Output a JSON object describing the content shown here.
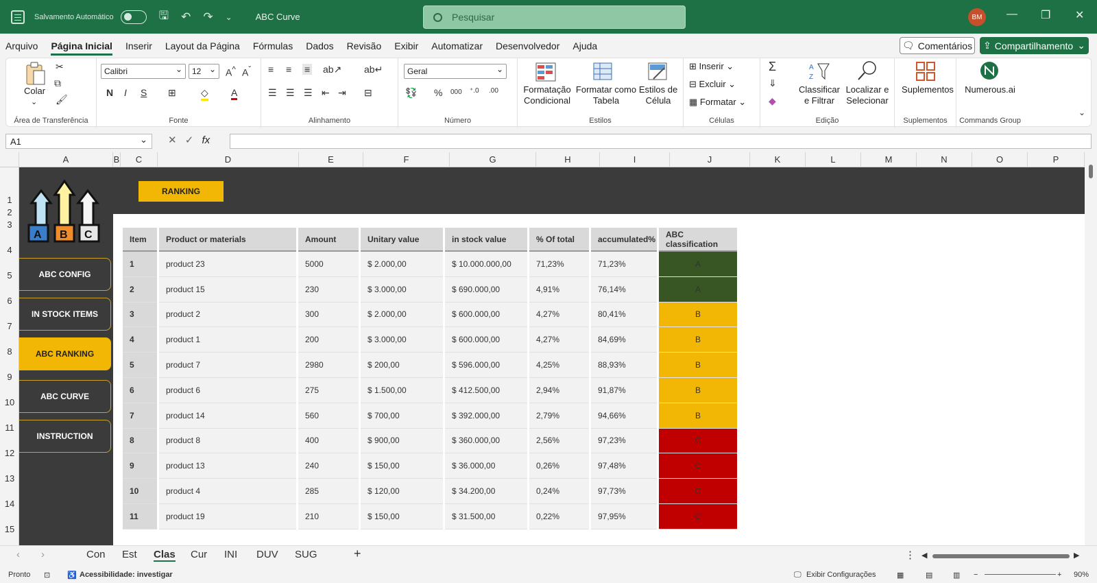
{
  "titlebar": {
    "autosave_label": "Salvamento Automático",
    "doc_title": "ABC Curve",
    "search_placeholder": "Pesquisar",
    "user_initials": "BM"
  },
  "menu": [
    "Arquivo",
    "Página Inicial",
    "Inserir",
    "Layout da Página",
    "Fórmulas",
    "Dados",
    "Revisão",
    "Exibir",
    "Automatizar",
    "Desenvolvedor",
    "Ajuda"
  ],
  "menu_active": "Página Inicial",
  "buttons": {
    "comments": "Comentários",
    "share": "Compartilhamento"
  },
  "ribbon": {
    "paste": "Colar",
    "font_name": "Calibri",
    "font_size": "12",
    "number_format": "Geral",
    "cond_format": [
      "Formatação",
      "Condicional"
    ],
    "format_table": [
      "Formatar como",
      "Tabela"
    ],
    "cell_styles": [
      "Estilos de",
      "Célula"
    ],
    "insert": "Inserir",
    "delete": "Excluir",
    "format": "Formatar",
    "sort_filter": [
      "Classificar",
      "e Filtrar"
    ],
    "find_select": [
      "Localizar e",
      "Selecionar"
    ],
    "addins": "Suplementos",
    "numerous": "Numerous.ai",
    "groups": {
      "clipboard": "Área de Transferência",
      "font": "Fonte",
      "alignment": "Alinhamento",
      "number": "Número",
      "styles": "Estilos",
      "cells": "Células",
      "editing": "Edição",
      "addins": "Suplementos",
      "commands": "Commands Group"
    }
  },
  "namebox": "A1",
  "columns": [
    "A",
    "B",
    "C",
    "D",
    "E",
    "F",
    "G",
    "H",
    "I",
    "J",
    "K",
    "L",
    "M",
    "N",
    "O",
    "P"
  ],
  "rows": [
    "1",
    "2",
    "3",
    "4",
    "5",
    "6",
    "7",
    "8",
    "9",
    "10",
    "11",
    "12",
    "13",
    "14",
    "15"
  ],
  "dashboard": {
    "ranking_tag": "RANKING",
    "logo_letters": [
      "A",
      "B",
      "C"
    ],
    "nav": [
      "ABC CONFIG",
      "IN STOCK ITEMS",
      "ABC RANKING",
      "ABC CURVE",
      "INSTRUCTION"
    ],
    "nav_active": "ABC RANKING"
  },
  "table": {
    "headers": [
      "Item",
      "Product or materials",
      "Amount",
      "Unitary value",
      "in stock value",
      "% Of total",
      "accumulated%",
      "ABC classification"
    ],
    "rows": [
      [
        "1",
        "product 23",
        "5000",
        "$ 2.000,00",
        "$ 10.000.000,00",
        "71,23%",
        "71,23%",
        "A"
      ],
      [
        "2",
        "product 15",
        "230",
        "$ 3.000,00",
        "$ 690.000,00",
        "4,91%",
        "76,14%",
        "A"
      ],
      [
        "3",
        "product 2",
        "300",
        "$ 2.000,00",
        "$ 600.000,00",
        "4,27%",
        "80,41%",
        "B"
      ],
      [
        "4",
        "product 1",
        "200",
        "$ 3.000,00",
        "$ 600.000,00",
        "4,27%",
        "84,69%",
        "B"
      ],
      [
        "5",
        "product 7",
        "2980",
        "$ 200,00",
        "$ 596.000,00",
        "4,25%",
        "88,93%",
        "B"
      ],
      [
        "6",
        "product 6",
        "275",
        "$ 1.500,00",
        "$ 412.500,00",
        "2,94%",
        "91,87%",
        "B"
      ],
      [
        "7",
        "product 14",
        "560",
        "$ 700,00",
        "$ 392.000,00",
        "2,79%",
        "94,66%",
        "B"
      ],
      [
        "8",
        "product 8",
        "400",
        "$ 900,00",
        "$ 360.000,00",
        "2,56%",
        "97,23%",
        "C"
      ],
      [
        "9",
        "product 13",
        "240",
        "$ 150,00",
        "$ 36.000,00",
        "0,26%",
        "97,48%",
        "C"
      ],
      [
        "10",
        "product 4",
        "285",
        "$ 120,00",
        "$ 34.200,00",
        "0,24%",
        "97,73%",
        "C"
      ],
      [
        "11",
        "product 19",
        "210",
        "$ 150,00",
        "$ 31.500,00",
        "0,22%",
        "97,95%",
        "C"
      ]
    ]
  },
  "class_colors": {
    "A": "#375623",
    "B": "#f2b705",
    "C": "#c00000"
  },
  "sheet_tabs": [
    "Con",
    "Est",
    "Clas",
    "Cur",
    "INI",
    "DUV",
    "SUG"
  ],
  "sheet_tab_active": "Clas",
  "status": {
    "ready": "Pronto",
    "accessibility": "Acessibilidade: investigar",
    "display_settings": "Exibir Configurações",
    "zoom": "90%"
  }
}
